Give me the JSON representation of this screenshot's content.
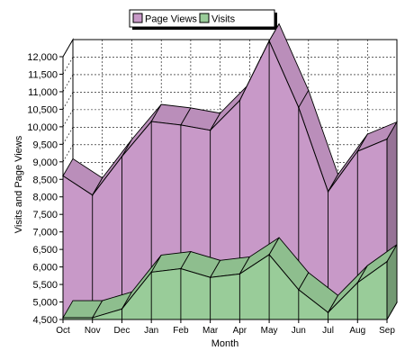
{
  "chart_data": {
    "type": "area",
    "title": "",
    "xlabel": "Month",
    "ylabel": "Visits and Page Views",
    "categories": [
      "Oct",
      "Nov",
      "Dec",
      "Jan",
      "Feb",
      "Mar",
      "Apr",
      "May",
      "Jun",
      "Jul",
      "Aug",
      "Sep"
    ],
    "ylim": [
      4500,
      12000
    ],
    "yticks": [
      4500,
      5000,
      5500,
      6000,
      6500,
      7000,
      7500,
      8000,
      8500,
      9000,
      9500,
      10000,
      10500,
      11000,
      11500,
      12000
    ],
    "ytick_labels": [
      "4,500",
      "5,000",
      "5,500",
      "6,000",
      "6,500",
      "7,000",
      "7,500",
      "8,000",
      "8,500",
      "9,000",
      "9,500",
      "10,000",
      "10,500",
      "11,000",
      "11,500",
      "12,000"
    ],
    "grid": true,
    "legend_position": "top-center",
    "series": [
      {
        "name": "Page Views",
        "color": "#c899c8",
        "values": [
          8600,
          8050,
          9150,
          10150,
          10050,
          9900,
          10750,
          12450,
          10550,
          8150,
          9300,
          9650
        ]
      },
      {
        "name": "Visits",
        "color": "#99cc99",
        "values": [
          4550,
          4550,
          4800,
          5850,
          5950,
          5700,
          5800,
          6350,
          5350,
          4700,
          5550,
          6150
        ]
      }
    ]
  }
}
